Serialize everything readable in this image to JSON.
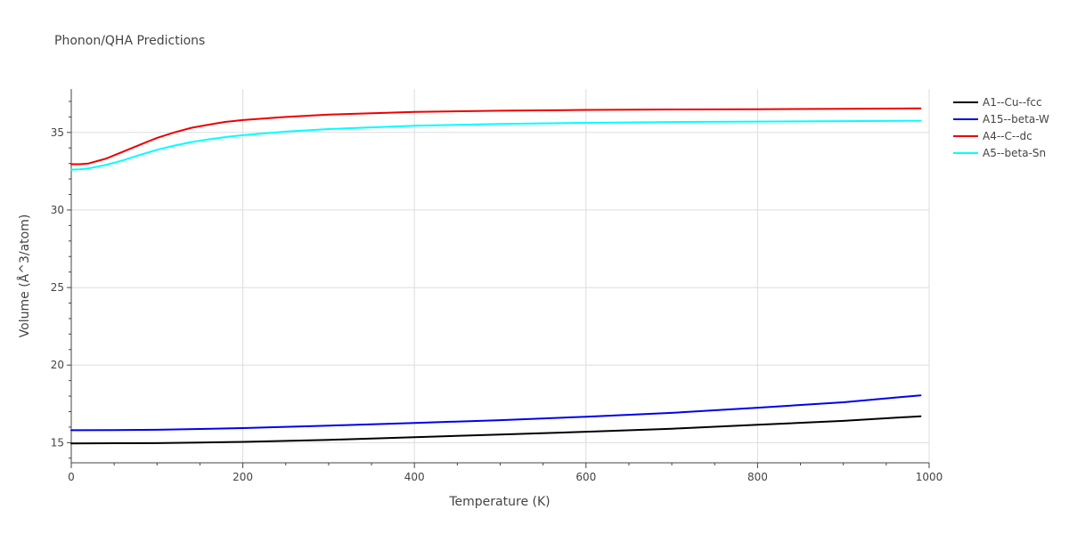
{
  "chart_data": {
    "type": "line",
    "title": "Phonon/QHA Predictions",
    "xlabel": "Temperature (K)",
    "ylabel": "Volume (Å^3/atom)",
    "xlim": [
      0,
      1000
    ],
    "ylim": [
      13.7,
      37.8
    ],
    "x_ticks": [
      0,
      200,
      400,
      600,
      800,
      1000
    ],
    "x_tick_labels": [
      "0",
      "200",
      "400",
      "600",
      "800",
      "1000"
    ],
    "y_ticks": [
      15,
      20,
      25,
      30,
      35
    ],
    "y_tick_labels": [
      "15",
      "20",
      "25",
      "30",
      "35"
    ],
    "grid": true,
    "legend_position": "top-right",
    "series": [
      {
        "name": "A1--Cu--fcc",
        "color": "#000000",
        "x": [
          0,
          50,
          100,
          150,
          200,
          300,
          400,
          500,
          600,
          700,
          800,
          900,
          990
        ],
        "y": [
          14.95,
          14.96,
          14.97,
          15.0,
          15.05,
          15.18,
          15.35,
          15.52,
          15.7,
          15.9,
          16.15,
          16.4,
          16.7
        ]
      },
      {
        "name": "A15--beta-W",
        "color": "#0000ee",
        "x": [
          0,
          50,
          100,
          150,
          200,
          300,
          400,
          500,
          600,
          700,
          800,
          900,
          990
        ],
        "y": [
          15.8,
          15.81,
          15.83,
          15.88,
          15.94,
          16.1,
          16.27,
          16.45,
          16.67,
          16.92,
          17.25,
          17.6,
          18.05
        ]
      },
      {
        "name": "A4--C--dc",
        "color": "#ee0000",
        "x": [
          0,
          10,
          20,
          40,
          60,
          80,
          100,
          120,
          140,
          160,
          180,
          200,
          250,
          300,
          400,
          500,
          600,
          700,
          800,
          900,
          990
        ],
        "y": [
          32.95,
          32.95,
          33.0,
          33.3,
          33.75,
          34.2,
          34.65,
          35.0,
          35.3,
          35.5,
          35.68,
          35.8,
          36.0,
          36.15,
          36.32,
          36.4,
          36.45,
          36.48,
          36.5,
          36.52,
          36.55
        ]
      },
      {
        "name": "A5--beta-Sn",
        "color": "#00ffff",
        "x": [
          0,
          10,
          20,
          40,
          60,
          80,
          100,
          120,
          140,
          160,
          180,
          200,
          250,
          300,
          400,
          500,
          600,
          700,
          800,
          900,
          990
        ],
        "y": [
          32.6,
          32.62,
          32.68,
          32.9,
          33.2,
          33.55,
          33.88,
          34.15,
          34.38,
          34.55,
          34.7,
          34.82,
          35.05,
          35.22,
          35.43,
          35.55,
          35.62,
          35.67,
          35.7,
          35.73,
          35.76
        ]
      }
    ]
  }
}
